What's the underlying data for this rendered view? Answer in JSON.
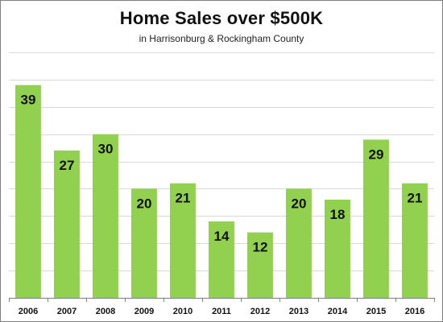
{
  "chart_data": {
    "type": "bar",
    "title": "Home Sales over $500K",
    "subtitle": "in Harrisonburg & Rockingham County",
    "categories": [
      "2006",
      "2007",
      "2008",
      "2009",
      "2010",
      "2011",
      "2012",
      "2013",
      "2014",
      "2015",
      "2016"
    ],
    "values": [
      39,
      27,
      30,
      20,
      21,
      14,
      12,
      20,
      18,
      29,
      21
    ],
    "xlabel": "",
    "ylabel": "",
    "ylim": [
      0,
      45
    ],
    "y_tick_step": 5,
    "y_tick_labels_shown": false,
    "data_labels": true,
    "grid": true,
    "legend": "none",
    "bar_color": "#92d050",
    "grid_color": "#d9d9d9",
    "axis_color": "#7f7f7f"
  }
}
